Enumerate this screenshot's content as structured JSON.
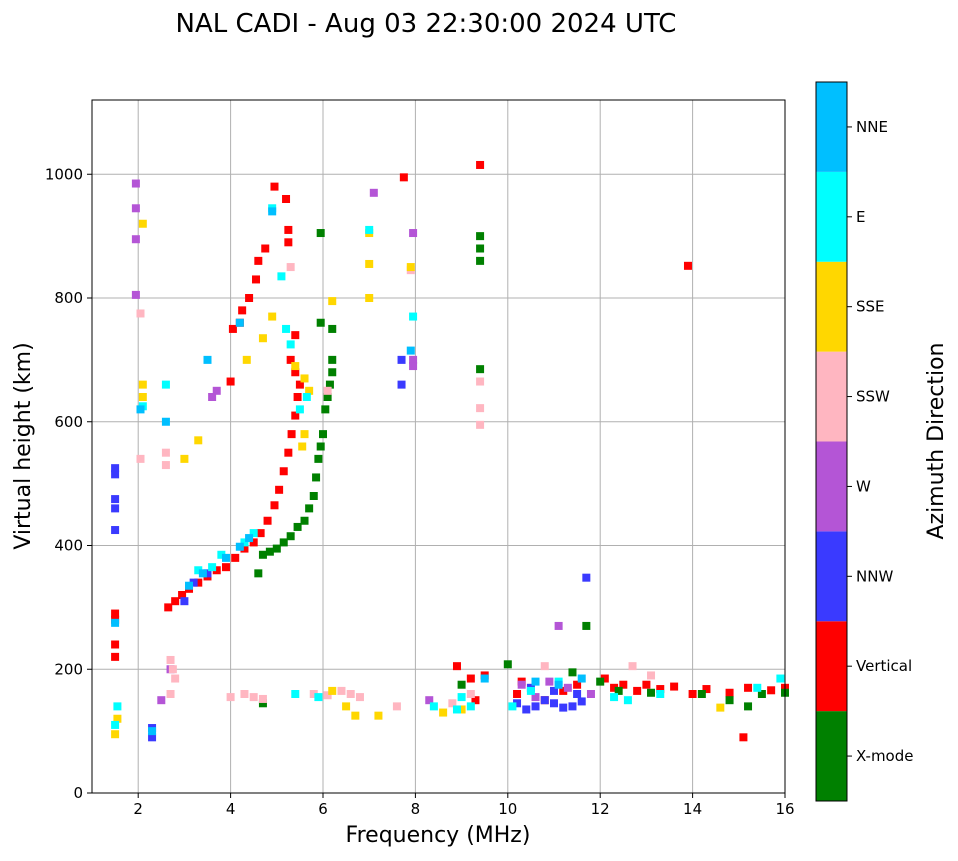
{
  "chart_data": {
    "type": "scatter",
    "title": "NAL CADI - Aug 03 22:30:00 2024 UTC",
    "xlabel": "Frequency (MHz)",
    "ylabel": "Virtual height (km)",
    "xlim": [
      1,
      16
    ],
    "ylim": [
      0,
      1120
    ],
    "xticks": [
      2,
      4,
      6,
      8,
      10,
      12,
      14,
      16
    ],
    "yticks": [
      0,
      200,
      400,
      600,
      800,
      1000
    ],
    "grid": true,
    "colorbar": {
      "label": "Azimuth Direction",
      "categories": [
        {
          "name": "X-mode",
          "color": "#008000"
        },
        {
          "name": "Vertical",
          "color": "#ff0000"
        },
        {
          "name": "NNW",
          "color": "#3a3aff"
        },
        {
          "name": "W",
          "color": "#b455d6"
        },
        {
          "name": "SSW",
          "color": "#ffb6c1"
        },
        {
          "name": "SSE",
          "color": "#ffd700"
        },
        {
          "name": "E",
          "color": "#00ffff"
        },
        {
          "name": "NNE",
          "color": "#00bfff"
        }
      ]
    },
    "series": [
      {
        "name": "Vertical",
        "points": [
          [
            2.65,
            300
          ],
          [
            2.8,
            310
          ],
          [
            2.95,
            320
          ],
          [
            3.1,
            330
          ],
          [
            3.3,
            340
          ],
          [
            3.5,
            350
          ],
          [
            3.7,
            360
          ],
          [
            3.9,
            365
          ],
          [
            4.1,
            380
          ],
          [
            4.3,
            395
          ],
          [
            4.5,
            405
          ],
          [
            4.65,
            420
          ],
          [
            4.8,
            440
          ],
          [
            4.95,
            465
          ],
          [
            5.05,
            490
          ],
          [
            5.15,
            520
          ],
          [
            5.25,
            550
          ],
          [
            5.32,
            580
          ],
          [
            5.4,
            610
          ],
          [
            5.45,
            640
          ],
          [
            5.5,
            660
          ],
          [
            4.0,
            665
          ],
          [
            4.05,
            750
          ],
          [
            4.2,
            760
          ],
          [
            4.25,
            780
          ],
          [
            4.4,
            800
          ],
          [
            4.55,
            830
          ],
          [
            4.6,
            860
          ],
          [
            4.75,
            880
          ],
          [
            4.95,
            980
          ],
          [
            5.25,
            910
          ],
          [
            5.25,
            890
          ],
          [
            5.2,
            960
          ],
          [
            5.3,
            700
          ],
          [
            5.4,
            740
          ],
          [
            5.4,
            680
          ],
          [
            7.75,
            995
          ],
          [
            9.4,
            1015
          ],
          [
            13.9,
            852
          ],
          [
            15.1,
            90
          ],
          [
            1.5,
            290
          ],
          [
            1.5,
            280
          ],
          [
            1.5,
            240
          ],
          [
            1.5,
            220
          ],
          [
            8.9,
            205
          ],
          [
            9.5,
            190
          ],
          [
            9.2,
            185
          ],
          [
            10.2,
            160
          ],
          [
            10.3,
            180
          ],
          [
            10.8,
            150
          ],
          [
            11.2,
            165
          ],
          [
            11.5,
            175
          ],
          [
            12.1,
            185
          ],
          [
            12.3,
            170
          ],
          [
            12.5,
            175
          ],
          [
            12.8,
            165
          ],
          [
            13.0,
            175
          ],
          [
            13.3,
            168
          ],
          [
            13.6,
            172
          ],
          [
            14.0,
            160
          ],
          [
            14.3,
            168
          ],
          [
            14.8,
            162
          ],
          [
            15.2,
            170
          ],
          [
            15.7,
            166
          ],
          [
            16.0,
            170
          ],
          [
            9.3,
            150
          ]
        ]
      },
      {
        "name": "X-mode",
        "points": [
          [
            4.6,
            355
          ],
          [
            4.7,
            385
          ],
          [
            4.85,
            390
          ],
          [
            5.0,
            395
          ],
          [
            5.15,
            405
          ],
          [
            5.3,
            415
          ],
          [
            5.45,
            430
          ],
          [
            5.6,
            440
          ],
          [
            5.7,
            460
          ],
          [
            5.8,
            480
          ],
          [
            5.85,
            510
          ],
          [
            5.9,
            540
          ],
          [
            5.95,
            560
          ],
          [
            6.0,
            580
          ],
          [
            6.05,
            620
          ],
          [
            6.1,
            640
          ],
          [
            6.15,
            660
          ],
          [
            6.2,
            680
          ],
          [
            6.2,
            700
          ],
          [
            5.95,
            760
          ],
          [
            5.95,
            905
          ],
          [
            6.2,
            750
          ],
          [
            9.4,
            900
          ],
          [
            9.4,
            880
          ],
          [
            9.4,
            860
          ],
          [
            9.4,
            685
          ],
          [
            11.7,
            270
          ],
          [
            4.7,
            145
          ],
          [
            10.0,
            208
          ],
          [
            11.4,
            195
          ],
          [
            12.0,
            180
          ],
          [
            12.4,
            165
          ],
          [
            13.1,
            162
          ],
          [
            14.2,
            160
          ],
          [
            14.8,
            150
          ],
          [
            15.2,
            140
          ],
          [
            15.5,
            160
          ],
          [
            16.0,
            162
          ],
          [
            9.0,
            175
          ]
        ]
      },
      {
        "name": "NNW",
        "points": [
          [
            1.5,
            525
          ],
          [
            1.5,
            515
          ],
          [
            1.5,
            475
          ],
          [
            1.5,
            460
          ],
          [
            1.5,
            425
          ],
          [
            11.7,
            348
          ],
          [
            2.3,
            105
          ],
          [
            2.3,
            90
          ],
          [
            10.4,
            135
          ],
          [
            10.6,
            140
          ],
          [
            10.8,
            150
          ],
          [
            11.0,
            145
          ],
          [
            11.2,
            138
          ],
          [
            11.4,
            140
          ],
          [
            11.6,
            148
          ],
          [
            10.5,
            170
          ],
          [
            11.0,
            165
          ],
          [
            11.5,
            160
          ],
          [
            10.2,
            145
          ],
          [
            7.7,
            660
          ],
          [
            7.7,
            700
          ],
          [
            3.0,
            310
          ],
          [
            3.2,
            340
          ],
          [
            3.5,
            355
          ]
        ]
      },
      {
        "name": "W",
        "points": [
          [
            1.95,
            985
          ],
          [
            1.95,
            945
          ],
          [
            1.95,
            895
          ],
          [
            1.95,
            805
          ],
          [
            7.1,
            970
          ],
          [
            7.95,
            905
          ],
          [
            7.95,
            700
          ],
          [
            7.95,
            690
          ],
          [
            11.1,
            270
          ],
          [
            8.3,
            150
          ],
          [
            10.3,
            175
          ],
          [
            10.9,
            180
          ],
          [
            11.3,
            170
          ],
          [
            10.6,
            155
          ],
          [
            11.8,
            160
          ],
          [
            2.5,
            150
          ],
          [
            3.6,
            640
          ],
          [
            3.7,
            650
          ],
          [
            2.7,
            200
          ]
        ]
      },
      {
        "name": "SSW",
        "points": [
          [
            2.05,
            775
          ],
          [
            2.05,
            540
          ],
          [
            2.6,
            550
          ],
          [
            2.6,
            530
          ],
          [
            2.7,
            215
          ],
          [
            2.75,
            200
          ],
          [
            2.8,
            185
          ],
          [
            2.7,
            160
          ],
          [
            9.4,
            665
          ],
          [
            9.4,
            622
          ],
          [
            9.4,
            595
          ],
          [
            10.8,
            205
          ],
          [
            12.7,
            205
          ],
          [
            13.1,
            190
          ],
          [
            4.0,
            155
          ],
          [
            4.3,
            160
          ],
          [
            4.5,
            155
          ],
          [
            4.7,
            152
          ],
          [
            5.8,
            160
          ],
          [
            6.1,
            158
          ],
          [
            6.4,
            165
          ],
          [
            6.6,
            160
          ],
          [
            6.8,
            155
          ],
          [
            7.6,
            140
          ],
          [
            8.8,
            145
          ],
          [
            9.2,
            160
          ],
          [
            7.9,
            845
          ],
          [
            5.3,
            850
          ],
          [
            6.1,
            650
          ]
        ]
      },
      {
        "name": "SSE",
        "points": [
          [
            2.1,
            660
          ],
          [
            2.1,
            640
          ],
          [
            2.1,
            920
          ],
          [
            3.3,
            570
          ],
          [
            3.0,
            540
          ],
          [
            4.35,
            700
          ],
          [
            4.7,
            735
          ],
          [
            4.9,
            770
          ],
          [
            5.4,
            690
          ],
          [
            5.6,
            670
          ],
          [
            5.7,
            650
          ],
          [
            5.55,
            560
          ],
          [
            5.6,
            580
          ],
          [
            6.2,
            795
          ],
          [
            7.0,
            800
          ],
          [
            7.0,
            855
          ],
          [
            7.0,
            905
          ],
          [
            7.9,
            850
          ],
          [
            6.5,
            140
          ],
          [
            6.7,
            125
          ],
          [
            7.2,
            125
          ],
          [
            8.6,
            130
          ],
          [
            9.0,
            135
          ],
          [
            14.6,
            138
          ],
          [
            6.2,
            165
          ],
          [
            1.5,
            95
          ],
          [
            1.55,
            120
          ]
        ]
      },
      {
        "name": "E",
        "points": [
          [
            4.9,
            945
          ],
          [
            5.1,
            835
          ],
          [
            5.2,
            750
          ],
          [
            5.65,
            640
          ],
          [
            5.5,
            620
          ],
          [
            7.0,
            910
          ],
          [
            7.95,
            770
          ],
          [
            2.1,
            625
          ],
          [
            2.6,
            660
          ],
          [
            1.5,
            110
          ],
          [
            1.55,
            140
          ],
          [
            5.3,
            725
          ],
          [
            8.4,
            140
          ],
          [
            8.9,
            135
          ],
          [
            9.0,
            155
          ],
          [
            9.2,
            140
          ],
          [
            10.1,
            140
          ],
          [
            10.5,
            165
          ],
          [
            11.1,
            180
          ],
          [
            12.3,
            155
          ],
          [
            12.6,
            150
          ],
          [
            13.3,
            160
          ],
          [
            15.4,
            170
          ],
          [
            15.9,
            185
          ],
          [
            5.4,
            160
          ],
          [
            5.9,
            155
          ],
          [
            3.3,
            360
          ],
          [
            3.6,
            365
          ],
          [
            4.3,
            405
          ],
          [
            4.5,
            420
          ],
          [
            3.8,
            385
          ]
        ]
      },
      {
        "name": "NNE",
        "points": [
          [
            4.9,
            940
          ],
          [
            3.5,
            700
          ],
          [
            4.2,
            760
          ],
          [
            2.05,
            620
          ],
          [
            2.6,
            600
          ],
          [
            1.5,
            275
          ],
          [
            7.9,
            715
          ],
          [
            9.5,
            185
          ],
          [
            10.6,
            180
          ],
          [
            11.1,
            175
          ],
          [
            11.6,
            185
          ],
          [
            3.1,
            335
          ],
          [
            3.4,
            355
          ],
          [
            3.9,
            380
          ],
          [
            4.2,
            398
          ],
          [
            4.4,
            412
          ],
          [
            2.3,
            100
          ]
        ]
      }
    ]
  }
}
